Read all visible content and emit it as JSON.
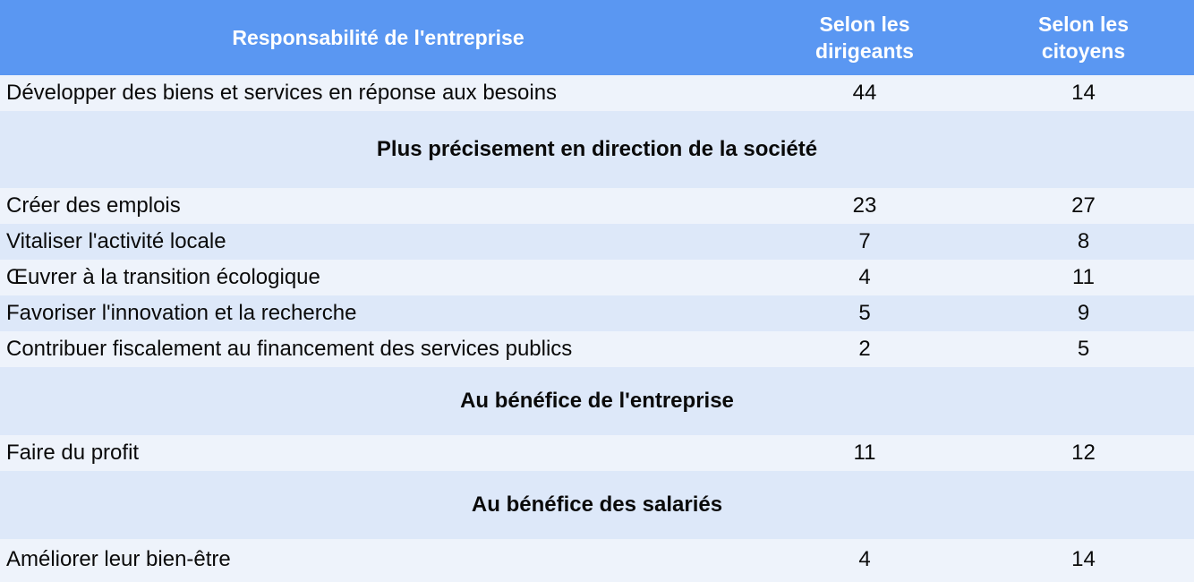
{
  "colors": {
    "header_bg": "#5a97f2",
    "header_text": "#ffffff",
    "row_light": "#eef3fb",
    "row_dark": "#dde8f9",
    "body_text": "#0a0a0a"
  },
  "table": {
    "columns": {
      "label": "Responsabilité de l'entreprise",
      "dirigeants": "Selon les dirigeants",
      "citoyens": "Selon les citoyens"
    },
    "rows": [
      {
        "type": "data",
        "label": "Développer des biens et services en réponse aux besoins",
        "dirigeants": 44,
        "citoyens": 14
      },
      {
        "type": "section",
        "label": "Plus précisement en direction de la société"
      },
      {
        "type": "data",
        "label": "Créer des emplois",
        "dirigeants": 23,
        "citoyens": 27
      },
      {
        "type": "data",
        "label": "Vitaliser l'activité locale",
        "dirigeants": 7,
        "citoyens": 8
      },
      {
        "type": "data",
        "label": "Œuvrer à la transition écologique",
        "dirigeants": 4,
        "citoyens": 11
      },
      {
        "type": "data",
        "label": "Favoriser l'innovation et la recherche",
        "dirigeants": 5,
        "citoyens": 9
      },
      {
        "type": "data",
        "label": "Contribuer fiscalement au financement des services publics",
        "dirigeants": 2,
        "citoyens": 5
      },
      {
        "type": "section",
        "label": "Au bénéfice de l'entreprise"
      },
      {
        "type": "data",
        "label": "Faire du profit",
        "dirigeants": 11,
        "citoyens": 12
      },
      {
        "type": "section",
        "label": "Au bénéfice des salariés"
      },
      {
        "type": "data",
        "label": "Améliorer leur bien-être",
        "dirigeants": 4,
        "citoyens": 14
      }
    ]
  },
  "chart_data": {
    "type": "table",
    "title": "Responsabilité de l'entreprise",
    "columns": [
      "Responsabilité de l'entreprise",
      "Selon les dirigeants",
      "Selon les citoyens"
    ],
    "categories": [
      "Développer des biens et services en réponse aux besoins",
      "Créer des emplois",
      "Vitaliser l'activité locale",
      "Œuvrer à la transition écologique",
      "Favoriser l'innovation et la recherche",
      "Contribuer fiscalement au financement des services publics",
      "Faire du profit",
      "Améliorer leur bien-être"
    ],
    "series": [
      {
        "name": "Selon les dirigeants",
        "values": [
          44,
          23,
          7,
          4,
          5,
          2,
          11,
          4
        ]
      },
      {
        "name": "Selon les citoyens",
        "values": [
          14,
          27,
          8,
          11,
          9,
          5,
          12,
          14
        ]
      }
    ],
    "section_headers": [
      "Plus précisement en direction de la société",
      "Au bénéfice de l'entreprise",
      "Au bénéfice des salariés"
    ],
    "layout": {
      "zebra_striping": true,
      "header_style": "blue-band",
      "grid": false
    }
  }
}
